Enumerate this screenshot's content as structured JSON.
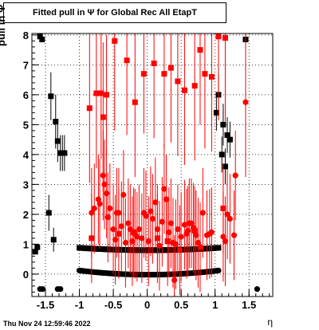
{
  "plot_title": "Fitted pull in  Ψ  for Global Rec All EtapT",
  "timestamp": "Thu Nov 24 12:59:46 2022",
  "chart_data": {
    "type": "scatter",
    "title": "Fitted pull in  Ψ  for Global Rec All EtapT",
    "xlabel": "η",
    "ylabel": "pull in  Ψ",
    "xlim": [
      -1.7,
      1.85
    ],
    "ylim": [
      -0.75,
      8.05
    ],
    "grid": true,
    "x_ticks": [
      {
        "value": -1.5,
        "label": "-1.5"
      },
      {
        "value": -1.0,
        "label": "-1"
      },
      {
        "value": -0.5,
        "label": "-0.5"
      },
      {
        "value": 0.0,
        "label": "0"
      },
      {
        "value": 0.5,
        "label": "0.5"
      },
      {
        "value": 1.0,
        "label": "1"
      },
      {
        "value": 1.5,
        "label": "1.5"
      }
    ],
    "y_ticks": [
      {
        "value": 0,
        "label": "0"
      },
      {
        "value": 1,
        "label": "1"
      },
      {
        "value": 2,
        "label": "2"
      },
      {
        "value": 3,
        "label": "3"
      },
      {
        "value": 4,
        "label": "4"
      },
      {
        "value": 5,
        "label": "5"
      },
      {
        "value": 6,
        "label": "6"
      },
      {
        "value": 7,
        "label": "7"
      },
      {
        "value": 8,
        "label": "8"
      }
    ],
    "series": [
      {
        "marker": "square",
        "color": "#000000",
        "points": [
          {
            "x": -1.65,
            "y": 0.75,
            "e": 0.0
          },
          {
            "x": -1.62,
            "y": 0.9,
            "e": 0.0
          },
          {
            "x": -1.58,
            "y": 7.95,
            "e": 0.0
          },
          {
            "x": -1.55,
            "y": 7.85,
            "e": 0.0
          },
          {
            "x": -1.45,
            "y": 2.05,
            "e": 0.6
          },
          {
            "x": -1.42,
            "y": 5.95,
            "e": 0.8
          },
          {
            "x": -1.38,
            "y": 1.15,
            "e": 0.4
          },
          {
            "x": -1.35,
            "y": 5.1,
            "e": 0.9
          },
          {
            "x": -1.32,
            "y": 4.45,
            "e": 0.7
          },
          {
            "x": -1.28,
            "y": 4.05,
            "e": 0.6
          },
          {
            "x": -1.25,
            "y": 4.05,
            "e": 0.6
          },
          {
            "x": -1.22,
            "y": 4.05,
            "e": 0.6
          },
          {
            "x": 1.02,
            "y": 5.4,
            "e": 0.6
          },
          {
            "x": 1.05,
            "y": 6.0,
            "e": 0.7
          },
          {
            "x": 1.1,
            "y": 4.0,
            "e": 0.6
          },
          {
            "x": 1.12,
            "y": 5.0,
            "e": 0.7
          },
          {
            "x": 1.15,
            "y": 3.6,
            "e": 0.6
          },
          {
            "x": 1.18,
            "y": 4.65,
            "e": 0.6
          },
          {
            "x": 1.22,
            "y": 4.5,
            "e": 0.6
          },
          {
            "x": 1.45,
            "y": 7.85,
            "e": 0.3
          }
        ]
      },
      {
        "marker": "circle",
        "color": "#000000",
        "points": [
          {
            "x": -1.58,
            "y": -0.5,
            "e": 0.0
          },
          {
            "x": -1.54,
            "y": -0.5,
            "e": 0.0
          },
          {
            "x": -1.32,
            "y": -0.5,
            "e": 0.0
          },
          {
            "x": -1.28,
            "y": -0.5,
            "e": 0.0
          },
          {
            "x": 1.62,
            "y": -0.5,
            "e": 0.0
          }
        ]
      },
      {
        "marker": "square",
        "color": "#000000",
        "band": true,
        "x_range": [
          -1.0,
          1.05
        ],
        "step": 0.025,
        "y_edge": 0.88,
        "y_center": 0.8
      },
      {
        "marker": "circle",
        "color": "#000000",
        "band": true,
        "x_range": [
          -1.0,
          1.05
        ],
        "step": 0.025,
        "y_edge": 0.12,
        "y_center": -0.02
      },
      {
        "marker": "square",
        "color": "#ff0000",
        "points": [
          {
            "x": -0.85,
            "y": 5.55,
            "e": 2.5
          },
          {
            "x": -0.75,
            "y": 6.05,
            "e": 2.5
          },
          {
            "x": -0.68,
            "y": 6.05,
            "e": 2.2
          },
          {
            "x": -0.65,
            "y": 5.25,
            "e": 2.5
          },
          {
            "x": -0.6,
            "y": 6.0,
            "e": 2.0
          },
          {
            "x": -0.48,
            "y": 7.8,
            "e": 3.0
          },
          {
            "x": -0.3,
            "y": 7.15,
            "e": 2.5
          },
          {
            "x": -0.18,
            "y": 5.75,
            "e": 2.5
          },
          {
            "x": -0.05,
            "y": 6.7,
            "e": 2.0
          },
          {
            "x": 0.1,
            "y": 7.05,
            "e": 2.5
          },
          {
            "x": 0.25,
            "y": 6.7,
            "e": 2.5
          },
          {
            "x": 0.35,
            "y": 6.9,
            "e": 2.5
          },
          {
            "x": 0.45,
            "y": 6.45,
            "e": 2.5
          },
          {
            "x": 0.55,
            "y": 6.15,
            "e": 2.5
          },
          {
            "x": 0.7,
            "y": 6.3,
            "e": 2.5
          },
          {
            "x": 0.78,
            "y": 7.5,
            "e": 2.5
          },
          {
            "x": 0.85,
            "y": 6.7,
            "e": 2.5
          },
          {
            "x": 0.95,
            "y": 6.6,
            "e": 2.5
          },
          {
            "x": 1.05,
            "y": 7.95,
            "e": 2.8
          },
          {
            "x": 1.15,
            "y": 7.9,
            "e": 2.8
          },
          {
            "x": -0.82,
            "y": 1.2,
            "e": 1.5
          },
          {
            "x": -0.42,
            "y": 1.35,
            "e": 1.5
          },
          {
            "x": -0.2,
            "y": 1.4,
            "e": 1.5
          },
          {
            "x": 0.15,
            "y": 1.2,
            "e": 1.5
          },
          {
            "x": 0.3,
            "y": 1.1,
            "e": 1.5
          },
          {
            "x": 0.7,
            "y": 1.45,
            "e": 1.5
          },
          {
            "x": 1.12,
            "y": 2.2,
            "e": 1.5
          }
        ]
      },
      {
        "marker": "circle",
        "color": "#ff0000",
        "points": [
          {
            "x": -0.82,
            "y": 2.05,
            "e": 1.5
          },
          {
            "x": -0.78,
            "y": 2.2,
            "e": 1.5
          },
          {
            "x": -0.72,
            "y": 2.5,
            "e": 1.5
          },
          {
            "x": -0.7,
            "y": 2.35,
            "e": 1.5
          },
          {
            "x": -0.65,
            "y": 3.3,
            "e": 1.5
          },
          {
            "x": -0.63,
            "y": 3.0,
            "e": 1.5
          },
          {
            "x": -0.6,
            "y": 2.7,
            "e": 1.5
          },
          {
            "x": -0.58,
            "y": 1.9,
            "e": 1.5
          },
          {
            "x": -0.55,
            "y": 2.2,
            "e": 1.5
          },
          {
            "x": -0.5,
            "y": 1.5,
            "e": 1.5
          },
          {
            "x": -0.47,
            "y": 1.15,
            "e": 1.5
          },
          {
            "x": -0.45,
            "y": 2.05,
            "e": 1.5
          },
          {
            "x": -0.42,
            "y": 2.05,
            "e": 1.5
          },
          {
            "x": -0.38,
            "y": 1.6,
            "e": 1.5
          },
          {
            "x": -0.35,
            "y": 2.65,
            "e": 1.5
          },
          {
            "x": -0.32,
            "y": 1.05,
            "e": 1.5
          },
          {
            "x": -0.28,
            "y": 1.7,
            "e": 1.5
          },
          {
            "x": -0.25,
            "y": 1.5,
            "e": 1.5
          },
          {
            "x": -0.22,
            "y": 1.1,
            "e": 1.5
          },
          {
            "x": -0.18,
            "y": 1.35,
            "e": 1.5
          },
          {
            "x": -0.15,
            "y": 1.25,
            "e": 1.5
          },
          {
            "x": -0.12,
            "y": 1.5,
            "e": 1.5
          },
          {
            "x": -0.08,
            "y": 1.2,
            "e": 1.5
          },
          {
            "x": -0.05,
            "y": 2.05,
            "e": 1.5
          },
          {
            "x": -0.02,
            "y": 1.95,
            "e": 1.5
          },
          {
            "x": 0.02,
            "y": 1.1,
            "e": 1.5
          },
          {
            "x": 0.05,
            "y": 2.1,
            "e": 1.5
          },
          {
            "x": 0.08,
            "y": 1.85,
            "e": 1.5
          },
          {
            "x": 0.12,
            "y": 2.4,
            "e": 1.5
          },
          {
            "x": 0.15,
            "y": 1.5,
            "e": 1.5
          },
          {
            "x": 0.18,
            "y": 0.95,
            "e": 1.5
          },
          {
            "x": 0.22,
            "y": 1.75,
            "e": 1.5
          },
          {
            "x": 0.25,
            "y": 2.85,
            "e": 1.5
          },
          {
            "x": 0.28,
            "y": 2.5,
            "e": 1.5
          },
          {
            "x": 0.32,
            "y": 1.4,
            "e": 1.5
          },
          {
            "x": 0.35,
            "y": 1.7,
            "e": 1.5
          },
          {
            "x": 0.38,
            "y": 1.05,
            "e": 1.5
          },
          {
            "x": 0.42,
            "y": 1.0,
            "e": 1.5
          },
          {
            "x": 0.45,
            "y": 1.5,
            "e": 1.5
          },
          {
            "x": 0.48,
            "y": 0.8,
            "e": 1.5
          },
          {
            "x": 0.5,
            "y": 1.25,
            "e": 1.5
          },
          {
            "x": 0.55,
            "y": 1.65,
            "e": 1.5
          },
          {
            "x": 0.58,
            "y": 1.35,
            "e": 1.5
          },
          {
            "x": 0.6,
            "y": 1.45,
            "e": 1.5
          },
          {
            "x": 0.62,
            "y": 1.7,
            "e": 1.5
          },
          {
            "x": 0.65,
            "y": 1.7,
            "e": 1.5
          },
          {
            "x": 0.68,
            "y": 1.55,
            "e": 1.5
          },
          {
            "x": 0.72,
            "y": 1.3,
            "e": 1.5
          },
          {
            "x": 0.75,
            "y": 1.05,
            "e": 1.5
          },
          {
            "x": 0.78,
            "y": 0.9,
            "e": 1.5
          },
          {
            "x": 0.82,
            "y": 2.05,
            "e": 1.5
          },
          {
            "x": 0.88,
            "y": 1.3,
            "e": 1.5
          },
          {
            "x": 0.92,
            "y": 1.35,
            "e": 1.5
          },
          {
            "x": 0.95,
            "y": 1.4,
            "e": 1.5
          },
          {
            "x": 1.12,
            "y": 1.25,
            "e": 1.5
          },
          {
            "x": 1.15,
            "y": 1.1,
            "e": 1.5
          },
          {
            "x": 1.18,
            "y": 2.0,
            "e": 1.5
          },
          {
            "x": 1.22,
            "y": 1.85,
            "e": 1.5
          },
          {
            "x": 1.28,
            "y": 1.3,
            "e": 1.5
          },
          {
            "x": 1.3,
            "y": 3.3,
            "e": 1.5
          },
          {
            "x": 0.4,
            "y": -0.2,
            "e": 1.5
          },
          {
            "x": 1.45,
            "y": 5.75,
            "e": 2.5
          }
        ]
      }
    ]
  }
}
